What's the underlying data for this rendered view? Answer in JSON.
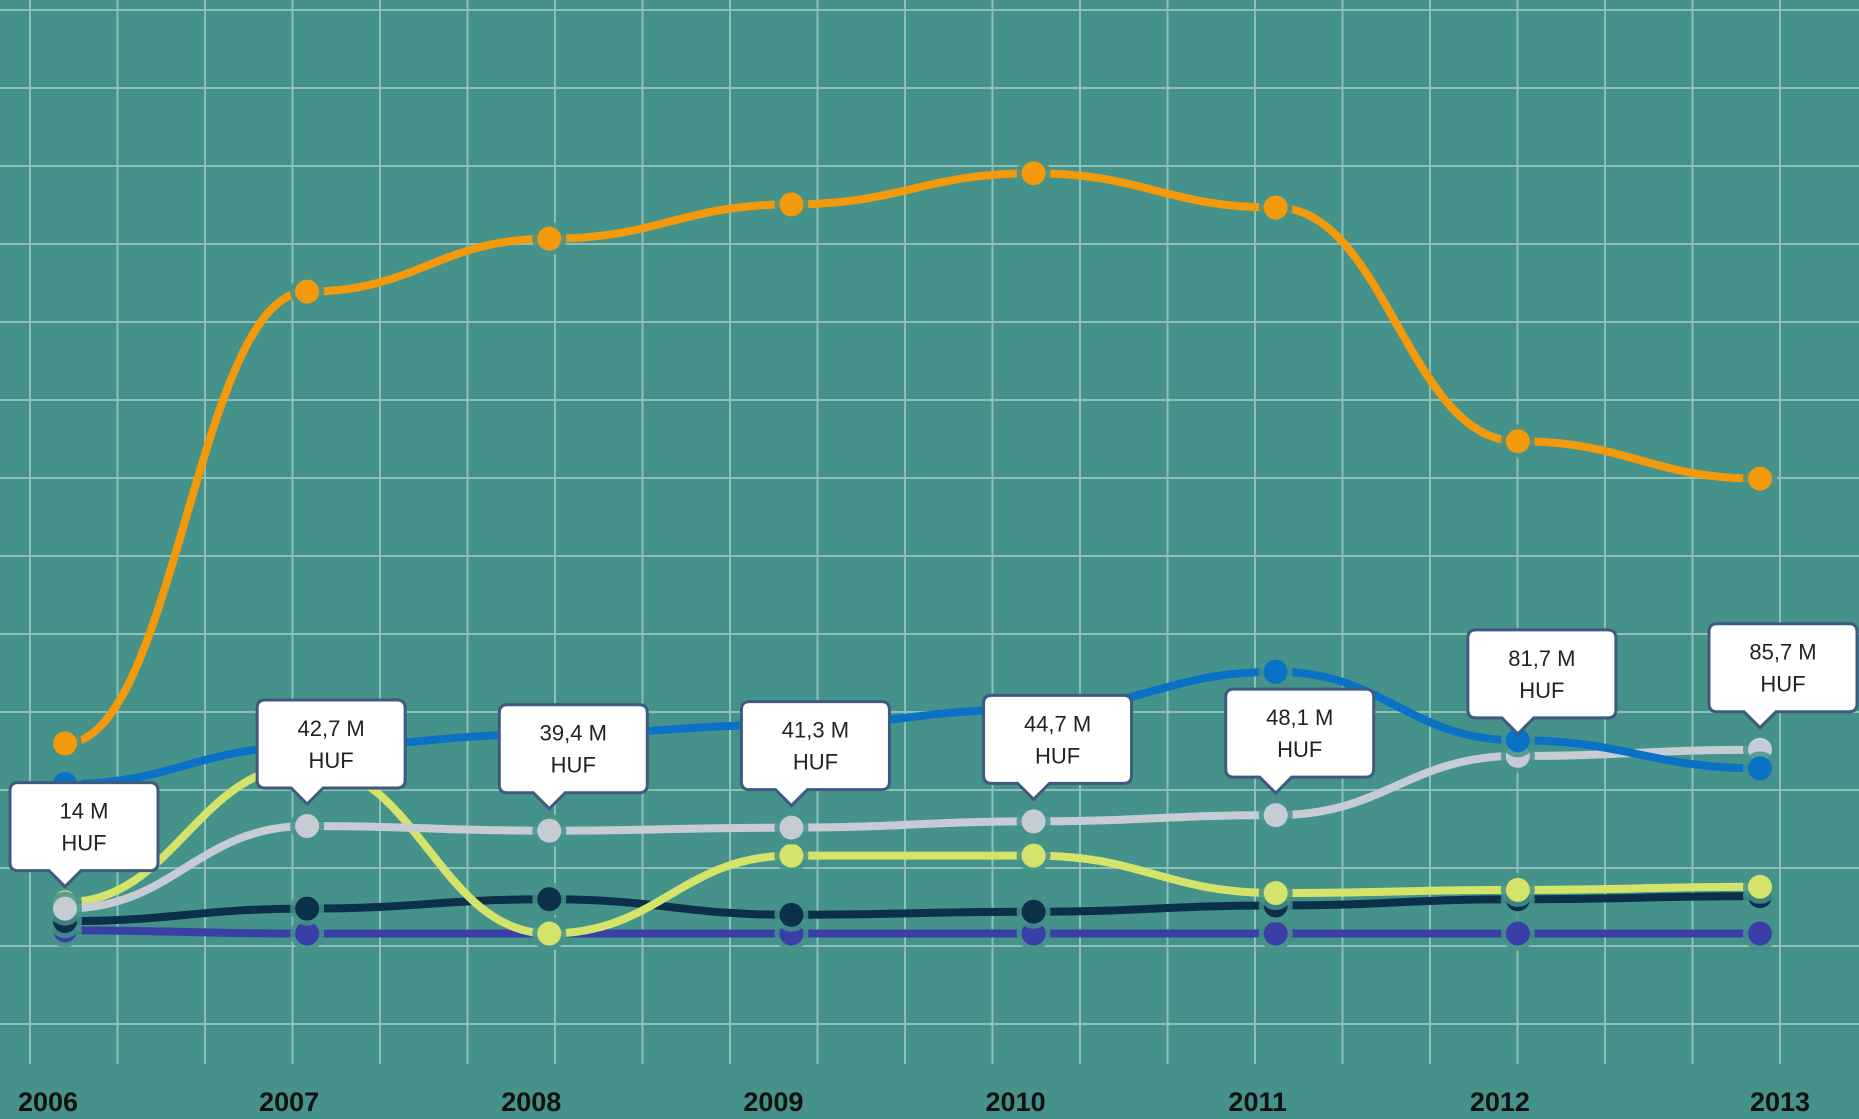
{
  "chart_data": {
    "type": "line",
    "categories": [
      "2006",
      "2007",
      "2008",
      "2009",
      "2010",
      "2011",
      "2012",
      "2013"
    ],
    "grid": true,
    "legend": "none",
    "ylim": [
      0,
      250
    ],
    "series": [
      {
        "color": "#f39a0c",
        "values": [
          65,
          210,
          227,
          238,
          248,
          237,
          162,
          150
        ]
      },
      {
        "color": "#0a72c4",
        "values": [
          52,
          64,
          68,
          71,
          76,
          88,
          66,
          57
        ]
      },
      {
        "color": "#c6ccd4",
        "values": [
          12,
          38.5,
          37,
          38,
          40,
          42,
          61,
          63
        ]
      },
      {
        "color": "#d4e46a",
        "values": [
          14,
          58,
          4,
          29,
          29,
          17,
          18,
          19
        ]
      },
      {
        "color": "#0c2f4a",
        "values": [
          8,
          12,
          15,
          10,
          11,
          13,
          15,
          16
        ]
      },
      {
        "color": "#3a3fa8",
        "values": [
          5,
          4,
          4,
          4,
          4,
          4,
          4,
          4
        ]
      }
    ],
    "annotations": [
      {
        "line1": "14 M",
        "line2": "HUF",
        "category": "2006"
      },
      {
        "line1": "42,7 M",
        "line2": "HUF",
        "category": "2007"
      },
      {
        "line1": "39,4 M",
        "line2": "HUF",
        "category": "2008"
      },
      {
        "line1": "41,3 M",
        "line2": "HUF",
        "category": "2009"
      },
      {
        "line1": "44,7 M",
        "line2": "HUF",
        "category": "2010"
      },
      {
        "line1": "48,1 M",
        "line2": "HUF",
        "category": "2011"
      },
      {
        "line1": "81,7 M",
        "line2": "HUF",
        "category": "2012"
      },
      {
        "line1": "85,7 M",
        "line2": "HUF",
        "category": "2013"
      }
    ]
  },
  "colors": {
    "background": "#45928a",
    "gridline": "#8cc0b8",
    "callout_fill": "#ffffff",
    "callout_border": "#3f5a80"
  }
}
